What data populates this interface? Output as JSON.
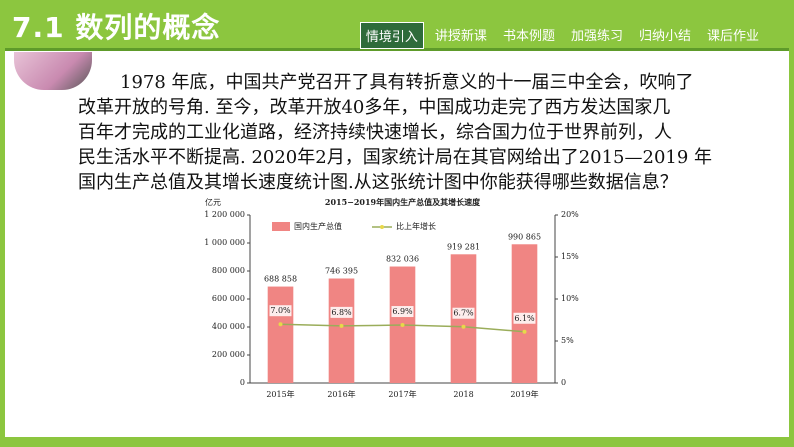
{
  "header": {
    "title": "7.1 数列的概念",
    "nav": [
      "情境引入",
      "讲授新课",
      "书本例题",
      "加强练习",
      "归纳小结",
      "课后作业"
    ]
  },
  "paragraph": [
    "1978 年底，中国共产党召开了具有转折意义的十一届三中全会，吹响了",
    "改革开放的号角.  至今，改革开放40多年，中国成功走完了西方发达国家几",
    "百年才完成的工业化道路，经济持续快速增长，综合国力位于世界前列，人",
    "民生活水平不断提高. 2020年2月，国家统计局在其官网给出了2015—2019 年",
    "国内生产总值及其增长速度统计图.从这张统计图中你能获得哪些数据信息？"
  ],
  "chart_data": {
    "type": "bar",
    "title": "2015−2019年国内生产总值及其增长速度",
    "y_label": "亿元",
    "categories": [
      "2015年",
      "2016年",
      "2017年",
      "2018",
      "2019年"
    ],
    "series": [
      {
        "name": "国内生产总值",
        "color": "#f08583",
        "values": [
          688858,
          746395,
          832036,
          919281,
          990865
        ],
        "value_labels": [
          "688 858",
          "746 395",
          "832 036",
          "919 281",
          "990 865"
        ]
      },
      {
        "name": "比上年增长",
        "type": "line",
        "axis": "y2",
        "color": "#9aad5a",
        "values": [
          7.0,
          6.8,
          6.9,
          6.7,
          6.1
        ],
        "value_labels": [
          "7.0%",
          "6.8%",
          "6.9%",
          "6.7%",
          "6.1%"
        ]
      }
    ],
    "ylim": [
      0,
      1200000
    ],
    "yticks": [
      0,
      {
        "value": 200000,
        "label": "200 000"
      },
      {
        "value": 400000,
        "label": "400 000"
      },
      {
        "value": 600000,
        "label": "600 000"
      },
      {
        "value": 800000,
        "label": "800 000"
      },
      {
        "value": 1000000,
        "label": "1 000 000"
      },
      {
        "value": 1200000,
        "label": "1 200 000"
      }
    ],
    "y2lim": [
      0,
      20
    ],
    "y2ticks": [
      0,
      {
        "value": 5,
        "label": "5%"
      },
      {
        "value": 10,
        "label": "10%"
      },
      {
        "value": 15,
        "label": "15%"
      },
      {
        "value": 20,
        "label": "20%"
      }
    ],
    "grid": false
  }
}
